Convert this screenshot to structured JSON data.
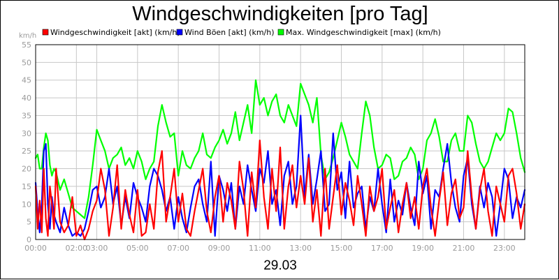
{
  "colors": {
    "red": "#ff0000",
    "blue": "#0000ff",
    "green": "#00ff00",
    "grid": "#c8c8c8",
    "axis_text": "#9a9a9a"
  },
  "chart_data": {
    "type": "line",
    "title": "Windgeschwindigkeiten [pro Tag]",
    "date_label": "29.03",
    "y_unit": "km/h",
    "ylim": [
      0,
      55
    ],
    "y_ticks": [
      0,
      5,
      10,
      15,
      20,
      25,
      30,
      35,
      40,
      45,
      50,
      55
    ],
    "x_range_hours": [
      0,
      24
    ],
    "x_ticks": [
      {
        "hour": 0,
        "label": "00:00"
      },
      {
        "hour": 2,
        "label": "02:00"
      },
      {
        "hour": 3,
        "label": "03:00"
      },
      {
        "hour": 5,
        "label": "05:00"
      },
      {
        "hour": 7,
        "label": "07:00"
      },
      {
        "hour": 9,
        "label": "09:00"
      },
      {
        "hour": 11,
        "label": "11:00"
      },
      {
        "hour": 13,
        "label": "13:00"
      },
      {
        "hour": 15,
        "label": "15:00"
      },
      {
        "hour": 17,
        "label": "17:00"
      },
      {
        "hour": 19,
        "label": "19:00"
      },
      {
        "hour": 21,
        "label": "21:00"
      },
      {
        "hour": 23,
        "label": "23:00"
      }
    ],
    "legend": [
      {
        "key": "akt",
        "label": "Windgeschwindigkeit [akt] (km/h)",
        "color": "#ff0000"
      },
      {
        "key": "boeen",
        "label": "Wind Böen [akt] (km/h)",
        "color": "#0000ff"
      },
      {
        "key": "max",
        "label": "Max. Windgeschwindigkeit [max] (km/h)",
        "color": "#00ff00"
      }
    ],
    "series": [
      {
        "name": "Max. Windgeschwindigkeit [max] (km/h)",
        "color": "#00ff00",
        "x": [
          0,
          0.1,
          0.2,
          0.3,
          0.4,
          0.5,
          0.6,
          0.7,
          0.8,
          0.9,
          1.0,
          1.2,
          1.4,
          1.6,
          1.8,
          2.0,
          2.2,
          2.4,
          2.6,
          2.8,
          3.0,
          3.2,
          3.4,
          3.6,
          3.8,
          4.0,
          4.2,
          4.4,
          4.6,
          4.8,
          5.0,
          5.2,
          5.4,
          5.6,
          5.8,
          6.0,
          6.2,
          6.4,
          6.6,
          6.8,
          7.0,
          7.2,
          7.4,
          7.6,
          7.8,
          8.0,
          8.2,
          8.4,
          8.6,
          8.8,
          9.0,
          9.2,
          9.4,
          9.6,
          9.8,
          10.0,
          10.2,
          10.4,
          10.6,
          10.8,
          11.0,
          11.2,
          11.4,
          11.6,
          11.8,
          12.0,
          12.2,
          12.4,
          12.6,
          12.8,
          13.0,
          13.2,
          13.4,
          13.6,
          13.8,
          14.0,
          14.2,
          14.4,
          14.6,
          14.8,
          15.0,
          15.2,
          15.4,
          15.6,
          15.8,
          16.0,
          16.2,
          16.4,
          16.6,
          16.8,
          17.0,
          17.2,
          17.4,
          17.6,
          17.8,
          18.0,
          18.2,
          18.4,
          18.6,
          18.8,
          19.0,
          19.2,
          19.4,
          19.6,
          19.8,
          20.0,
          20.2,
          20.4,
          20.6,
          20.8,
          21.0,
          21.2,
          21.4,
          21.6,
          21.8,
          22.0,
          22.2,
          22.4,
          22.6,
          22.8,
          23.0,
          23.2,
          23.4,
          23.6,
          23.8,
          24.0
        ],
        "values": [
          23,
          24,
          20,
          20,
          26,
          30,
          28,
          21,
          18,
          20,
          19,
          14,
          17,
          13,
          9,
          8,
          7,
          6,
          12,
          21,
          31,
          28,
          25,
          20,
          23,
          24,
          26,
          21,
          23,
          20,
          25,
          22,
          17,
          20,
          22,
          32,
          38,
          33,
          29,
          30,
          18,
          25,
          21,
          20,
          23,
          25,
          30,
          24,
          23,
          26,
          28,
          31,
          27,
          30,
          36,
          28,
          33,
          38,
          30,
          45,
          38,
          40,
          35,
          39,
          41,
          35,
          33,
          38,
          35,
          32,
          44,
          41,
          38,
          33,
          40,
          24,
          17,
          19,
          23,
          28,
          33,
          29,
          24,
          22,
          20,
          30,
          39,
          35,
          26,
          20,
          21,
          24,
          23,
          17,
          18,
          22,
          23,
          26,
          24,
          17,
          20,
          28,
          30,
          34,
          29,
          22,
          22,
          28,
          30,
          25,
          25,
          35,
          33,
          27,
          22,
          20,
          22,
          26,
          30,
          28,
          30,
          37,
          36,
          30,
          23,
          19
        ]
      },
      {
        "name": "Wind Böen [akt] (km/h)",
        "color": "#0000ff",
        "x": [
          0,
          0.1,
          0.2,
          0.3,
          0.4,
          0.5,
          0.6,
          0.7,
          0.8,
          0.9,
          1.0,
          1.2,
          1.4,
          1.6,
          1.8,
          2.0,
          2.2,
          2.4,
          2.6,
          2.8,
          3.0,
          3.2,
          3.4,
          3.6,
          3.8,
          4.0,
          4.2,
          4.4,
          4.6,
          4.8,
          5.0,
          5.2,
          5.4,
          5.6,
          5.8,
          6.0,
          6.2,
          6.4,
          6.6,
          6.8,
          7.0,
          7.2,
          7.4,
          7.6,
          7.8,
          8.0,
          8.2,
          8.4,
          8.6,
          8.8,
          9.0,
          9.2,
          9.4,
          9.6,
          9.8,
          10.0,
          10.2,
          10.4,
          10.6,
          10.8,
          11.0,
          11.2,
          11.4,
          11.6,
          11.8,
          12.0,
          12.2,
          12.4,
          12.6,
          12.8,
          13.0,
          13.2,
          13.4,
          13.6,
          13.8,
          14.0,
          14.2,
          14.4,
          14.6,
          14.8,
          15.0,
          15.2,
          15.4,
          15.6,
          15.8,
          16.0,
          16.2,
          16.4,
          16.6,
          16.8,
          17.0,
          17.2,
          17.4,
          17.6,
          17.8,
          18.0,
          18.2,
          18.4,
          18.6,
          18.8,
          19.0,
          19.2,
          19.4,
          19.6,
          19.8,
          20.0,
          20.2,
          20.4,
          20.6,
          20.8,
          21.0,
          21.2,
          21.4,
          21.6,
          21.8,
          22.0,
          22.2,
          22.4,
          22.6,
          22.8,
          23.0,
          23.2,
          23.4,
          23.6,
          23.8,
          24.0
        ],
        "values": [
          16,
          8,
          2,
          10,
          25,
          27,
          10,
          3,
          12,
          7,
          5,
          2,
          9,
          4,
          1,
          2,
          1,
          3,
          8,
          14,
          15,
          9,
          12,
          20,
          10,
          15,
          4,
          12,
          6,
          16,
          12,
          9,
          5,
          15,
          20,
          18,
          14,
          8,
          12,
          3,
          12,
          6,
          2,
          9,
          15,
          17,
          10,
          5,
          22,
          1,
          18,
          14,
          8,
          16,
          3,
          15,
          10,
          21,
          14,
          8,
          20,
          16,
          25,
          10,
          14,
          4,
          18,
          22,
          10,
          15,
          35,
          12,
          24,
          10,
          17,
          25,
          8,
          10,
          30,
          14,
          19,
          6,
          22,
          9,
          13,
          15,
          3,
          12,
          8,
          20,
          10,
          2,
          17,
          5,
          11,
          7,
          16,
          9,
          4,
          22,
          13,
          18,
          3,
          14,
          12,
          20,
          27,
          16,
          9,
          5,
          18,
          23,
          10,
          3,
          15,
          9,
          16,
          12,
          1,
          10,
          20,
          17,
          6,
          12,
          9,
          14
        ]
      },
      {
        "name": "Windgeschwindigkeit [akt] (km/h)",
        "color": "#ff0000",
        "x": [
          0,
          0.1,
          0.2,
          0.3,
          0.4,
          0.5,
          0.6,
          0.7,
          0.8,
          0.9,
          1.0,
          1.2,
          1.4,
          1.6,
          1.8,
          2.0,
          2.2,
          2.4,
          2.6,
          2.8,
          3.0,
          3.2,
          3.4,
          3.6,
          3.8,
          4.0,
          4.2,
          4.4,
          4.6,
          4.8,
          5.0,
          5.2,
          5.4,
          5.6,
          5.8,
          6.0,
          6.2,
          6.4,
          6.6,
          6.8,
          7.0,
          7.2,
          7.4,
          7.6,
          7.8,
          8.0,
          8.2,
          8.4,
          8.6,
          8.8,
          9.0,
          9.2,
          9.4,
          9.6,
          9.8,
          10.0,
          10.2,
          10.4,
          10.6,
          10.8,
          11.0,
          11.2,
          11.4,
          11.6,
          11.8,
          12.0,
          12.2,
          12.4,
          12.6,
          12.8,
          13.0,
          13.2,
          13.4,
          13.6,
          13.8,
          14.0,
          14.2,
          14.4,
          14.6,
          14.8,
          15.0,
          15.2,
          15.4,
          15.6,
          15.8,
          16.0,
          16.2,
          16.4,
          16.6,
          16.8,
          17.0,
          17.2,
          17.4,
          17.6,
          17.8,
          18.0,
          18.2,
          18.4,
          18.6,
          18.8,
          19.0,
          19.2,
          19.4,
          19.6,
          19.8,
          20.0,
          20.2,
          20.4,
          20.6,
          20.8,
          21.0,
          21.2,
          21.4,
          21.6,
          21.8,
          22.0,
          22.2,
          22.4,
          22.6,
          22.8,
          23.0,
          23.2,
          23.4,
          23.6,
          23.8,
          24.0
        ],
        "values": [
          15,
          3,
          11,
          2,
          20,
          6,
          1,
          15,
          10,
          3,
          20,
          5,
          2,
          4,
          12,
          1,
          4,
          0,
          3,
          8,
          11,
          20,
          14,
          1,
          9,
          21,
          3,
          14,
          7,
          2,
          14,
          1,
          2,
          10,
          3,
          19,
          25,
          5,
          12,
          20,
          5,
          13,
          3,
          1,
          8,
          14,
          20,
          8,
          2,
          12,
          18,
          5,
          16,
          11,
          3,
          22,
          14,
          1,
          19,
          9,
          28,
          12,
          3,
          20,
          8,
          26,
          3,
          15,
          21,
          9,
          18,
          10,
          23,
          5,
          14,
          1,
          20,
          3,
          12,
          21,
          7,
          16,
          11,
          4,
          18,
          10,
          1,
          15,
          8,
          12,
          20,
          3,
          9,
          14,
          2,
          10,
          16,
          6,
          12,
          3,
          15,
          20,
          9,
          1,
          11,
          19,
          4,
          13,
          17,
          6,
          9,
          25,
          12,
          3,
          14,
          20,
          8,
          1,
          15,
          10,
          5,
          18,
          20,
          13,
          3,
          10
        ]
      }
    ]
  }
}
